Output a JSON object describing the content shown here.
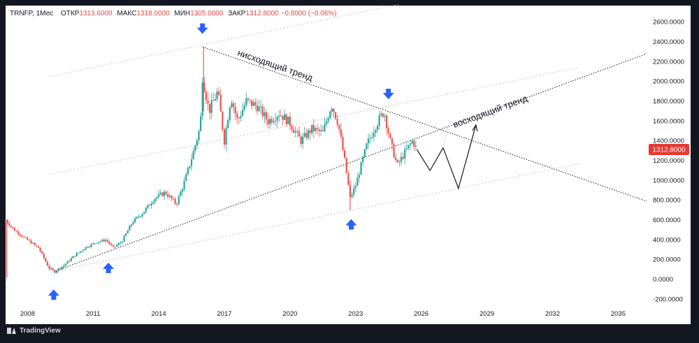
{
  "header": {
    "symbol": "TRNFP, 1Мес",
    "open_label": "ОТКР",
    "open": "1313.6000",
    "high_label": "МАКС",
    "high": "1318.0000",
    "low_label": "МИН",
    "low": "1305.0000",
    "close_label": "ЗАКР",
    "close": "1312.8000",
    "change": "−0.8000 (−0.06%)"
  },
  "price_tag": "1312.8000",
  "brand": "TradingView",
  "colors": {
    "up": "#26a69a",
    "down": "#ef5350",
    "tag": "#e53935",
    "arrow": "#2962ff",
    "bg": "#ffffff"
  },
  "annotations": {
    "downtrend": "нисходящий тренд",
    "uptrend": "восходящий тренд"
  },
  "chart_data": {
    "type": "candlestick",
    "x_ticks": [
      "2008",
      "2011",
      "2014",
      "2017",
      "2020",
      "2023",
      "2026",
      "2029",
      "2032",
      "2035"
    ],
    "y_ticks": [
      "2600.0000",
      "2400.0000",
      "2200.0000",
      "2000.0000",
      "1800.0000",
      "1600.0000",
      "1400.0000",
      "1200.0000",
      "1000.0000",
      "800.0000",
      "600.0000",
      "400.0000",
      "200.0000",
      "0.0000",
      "-200.0000"
    ],
    "ylim": [
      -250,
      2700
    ],
    "xlim": [
      2007.0,
      2036.3
    ],
    "anchors": [
      [
        2007.0,
        600
      ],
      [
        2007.3,
        520
      ],
      [
        2007.8,
        430
      ],
      [
        2008.5,
        320
      ],
      [
        2009.0,
        110
      ],
      [
        2009.25,
        80
      ],
      [
        2009.7,
        150
      ],
      [
        2010.2,
        250
      ],
      [
        2010.7,
        330
      ],
      [
        2011.2,
        380
      ],
      [
        2011.6,
        400
      ],
      [
        2011.9,
        320
      ],
      [
        2012.3,
        380
      ],
      [
        2012.8,
        580
      ],
      [
        2013.3,
        680
      ],
      [
        2013.8,
        820
      ],
      [
        2014.3,
        880
      ],
      [
        2014.8,
        760
      ],
      [
        2015.2,
        1000
      ],
      [
        2015.6,
        1300
      ],
      [
        2015.9,
        1550
      ],
      [
        2016.0,
        2050
      ],
      [
        2016.3,
        1700
      ],
      [
        2016.7,
        1900
      ],
      [
        2017.0,
        1400
      ],
      [
        2017.3,
        1850
      ],
      [
        2017.6,
        1600
      ],
      [
        2018.0,
        1800
      ],
      [
        2018.5,
        1750
      ],
      [
        2019.0,
        1600
      ],
      [
        2019.5,
        1680
      ],
      [
        2020.0,
        1580
      ],
      [
        2020.5,
        1400
      ],
      [
        2021.0,
        1520
      ],
      [
        2021.5,
        1480
      ],
      [
        2021.9,
        1770
      ],
      [
        2022.2,
        1580
      ],
      [
        2022.5,
        1200
      ],
      [
        2022.75,
        820
      ],
      [
        2023.0,
        950
      ],
      [
        2023.5,
        1350
      ],
      [
        2023.9,
        1550
      ],
      [
        2024.3,
        1700
      ],
      [
        2024.6,
        1380
      ],
      [
        2024.9,
        1150
      ],
      [
        2025.3,
        1300
      ],
      [
        2025.6,
        1400
      ],
      [
        2025.8,
        1313
      ]
    ],
    "trendlines": [
      {
        "name": "downtrend",
        "from": [
          2016.0,
          2350
        ],
        "to": [
          2036.3,
          790
        ]
      },
      {
        "name": "uptrend",
        "from": [
          2009.2,
          80
        ],
        "to": [
          2036.3,
          2280
        ]
      },
      {
        "name": "channel-lower",
        "from": [
          2009.2,
          80
        ],
        "to": [
          2033.2,
          1170
        ]
      },
      {
        "name": "channel-upper",
        "from": [
          2009.0,
          2050
        ],
        "to": [
          2025.0,
          2780
        ]
      },
      {
        "name": "channel-mid",
        "from": [
          2009.0,
          1060
        ],
        "to": [
          2033.2,
          2140
        ]
      }
    ],
    "forecast_path": [
      [
        2025.8,
        1313
      ],
      [
        2026.4,
        1100
      ],
      [
        2027.0,
        1330
      ],
      [
        2027.7,
        920
      ],
      [
        2028.5,
        1560
      ]
    ],
    "markers": [
      {
        "dir": "down",
        "x": 2016.0,
        "y": 2530
      },
      {
        "dir": "down",
        "x": 2024.5,
        "y": 1870
      },
      {
        "dir": "up",
        "x": 2009.2,
        "y": -150
      },
      {
        "dir": "up",
        "x": 2011.7,
        "y": 120
      },
      {
        "dir": "up",
        "x": 2022.8,
        "y": 560
      }
    ]
  }
}
